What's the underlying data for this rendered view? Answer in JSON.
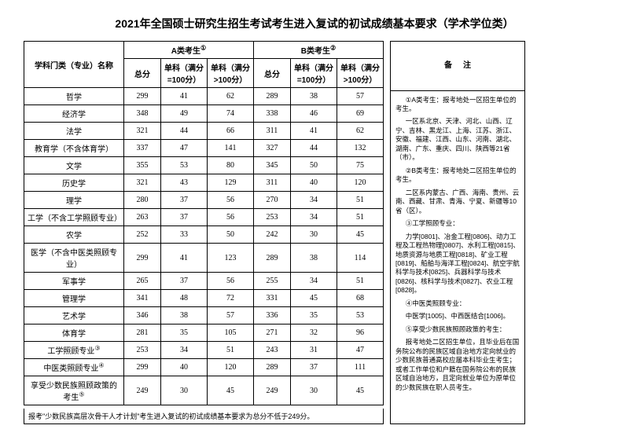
{
  "title": "2021年全国硕士研究生招生考试考生进入复试的初试成绩基本要求（学术学位类）",
  "headers": {
    "subject": "学科门类（专业）名称",
    "groupA": "A类考生",
    "groupB": "B类考生",
    "total": "总分",
    "single100": "单科（满分=100分）",
    "singleOver100": "单科（满分>100分）",
    "notes": "备注"
  },
  "rows": [
    {
      "name": "哲学",
      "a": [
        299,
        41,
        62
      ],
      "b": [
        289,
        38,
        57
      ]
    },
    {
      "name": "经济学",
      "a": [
        348,
        49,
        74
      ],
      "b": [
        338,
        46,
        69
      ]
    },
    {
      "name": "法学",
      "a": [
        321,
        44,
        66
      ],
      "b": [
        311,
        41,
        62
      ]
    },
    {
      "name": "教育学（不含体育学）",
      "a": [
        337,
        47,
        141
      ],
      "b": [
        327,
        44,
        132
      ]
    },
    {
      "name": "文学",
      "a": [
        355,
        53,
        80
      ],
      "b": [
        345,
        50,
        75
      ]
    },
    {
      "name": "历史学",
      "a": [
        321,
        43,
        129
      ],
      "b": [
        311,
        40,
        120
      ]
    },
    {
      "name": "理学",
      "a": [
        280,
        37,
        56
      ],
      "b": [
        270,
        34,
        51
      ]
    },
    {
      "name": "工学（不含工学照顾专业）",
      "a": [
        263,
        37,
        56
      ],
      "b": [
        253,
        34,
        51
      ]
    },
    {
      "name": "农学",
      "a": [
        252,
        33,
        50
      ],
      "b": [
        242,
        30,
        45
      ]
    },
    {
      "name": "医学（不含中医类照顾专业）",
      "a": [
        299,
        41,
        123
      ],
      "b": [
        289,
        38,
        114
      ]
    },
    {
      "name": "军事学",
      "a": [
        265,
        37,
        56
      ],
      "b": [
        255,
        34,
        51
      ]
    },
    {
      "name": "管理学",
      "a": [
        341,
        48,
        72
      ],
      "b": [
        331,
        45,
        68
      ]
    },
    {
      "name": "艺术学",
      "a": [
        346,
        38,
        57
      ],
      "b": [
        336,
        35,
        53
      ]
    },
    {
      "name": "体育学",
      "a": [
        281,
        35,
        105
      ],
      "b": [
        271,
        32,
        96
      ]
    },
    {
      "name": "工学照顾专业",
      "sup": "③",
      "a": [
        253,
        34,
        51
      ],
      "b": [
        243,
        31,
        47
      ]
    },
    {
      "name": "中医类照顾专业",
      "sup": "④",
      "a": [
        299,
        40,
        120
      ],
      "b": [
        289,
        37,
        111
      ]
    },
    {
      "name": "享受少数民族照顾政策的考生",
      "sup": "⑤",
      "a": [
        249,
        30,
        45
      ],
      "b": [
        249,
        30,
        45
      ]
    }
  ],
  "footnote": "报考\"少数民族高层次骨干人才计划\"考生进入复试的初试成绩基本要求为总分不低于249分。",
  "notes": {
    "n1_title": "①A类考生：报考地处一区招生单位的考生。",
    "n1_body": "一区系北京、天津、河北、山西、辽宁、吉林、黑龙江、上海、江苏、浙江、安徽、福建、江西、山东、河南、湖北、湖南、广东、重庆、四川、陕西等21省（市）。",
    "n2_title": "②B类考生：报考地处二区招生单位的考生。",
    "n2_body": "二区系内蒙古、广西、海南、贵州、云南、西藏、甘肃、青海、宁夏、新疆等10省（区）。",
    "n3_title": "③工学照顾专业：",
    "n3_body": "力学[0801]、冶金工程[0806]、动力工程及工程热物理[0807]、水利工程[0815]、地质资源与地质工程[0818]、矿业工程[0819]、船舶与海洋工程[0824]、航空宇航科学与技术[0825]、兵器科学与技术[0826]、核科学与技术[0827]、农业工程[0828]。",
    "n4_title": "④中医类照顾专业：",
    "n4_body": "中医学[1005]、中西医结合[1006]。",
    "n5_title": "⑤享受少数民族照顾政策的考生：",
    "n5_body": "报考地处二区招生单位，且毕业后在国务院公布的民族区域自治地方定向就业的少数民族普通高校应届本科毕业生考生；或者工作单位和户籍在国务院公布的民族区域自治地方，且定向就业单位为原单位的少数民族在职人员考生。"
  },
  "sup": {
    "a": "①",
    "b": "②"
  }
}
